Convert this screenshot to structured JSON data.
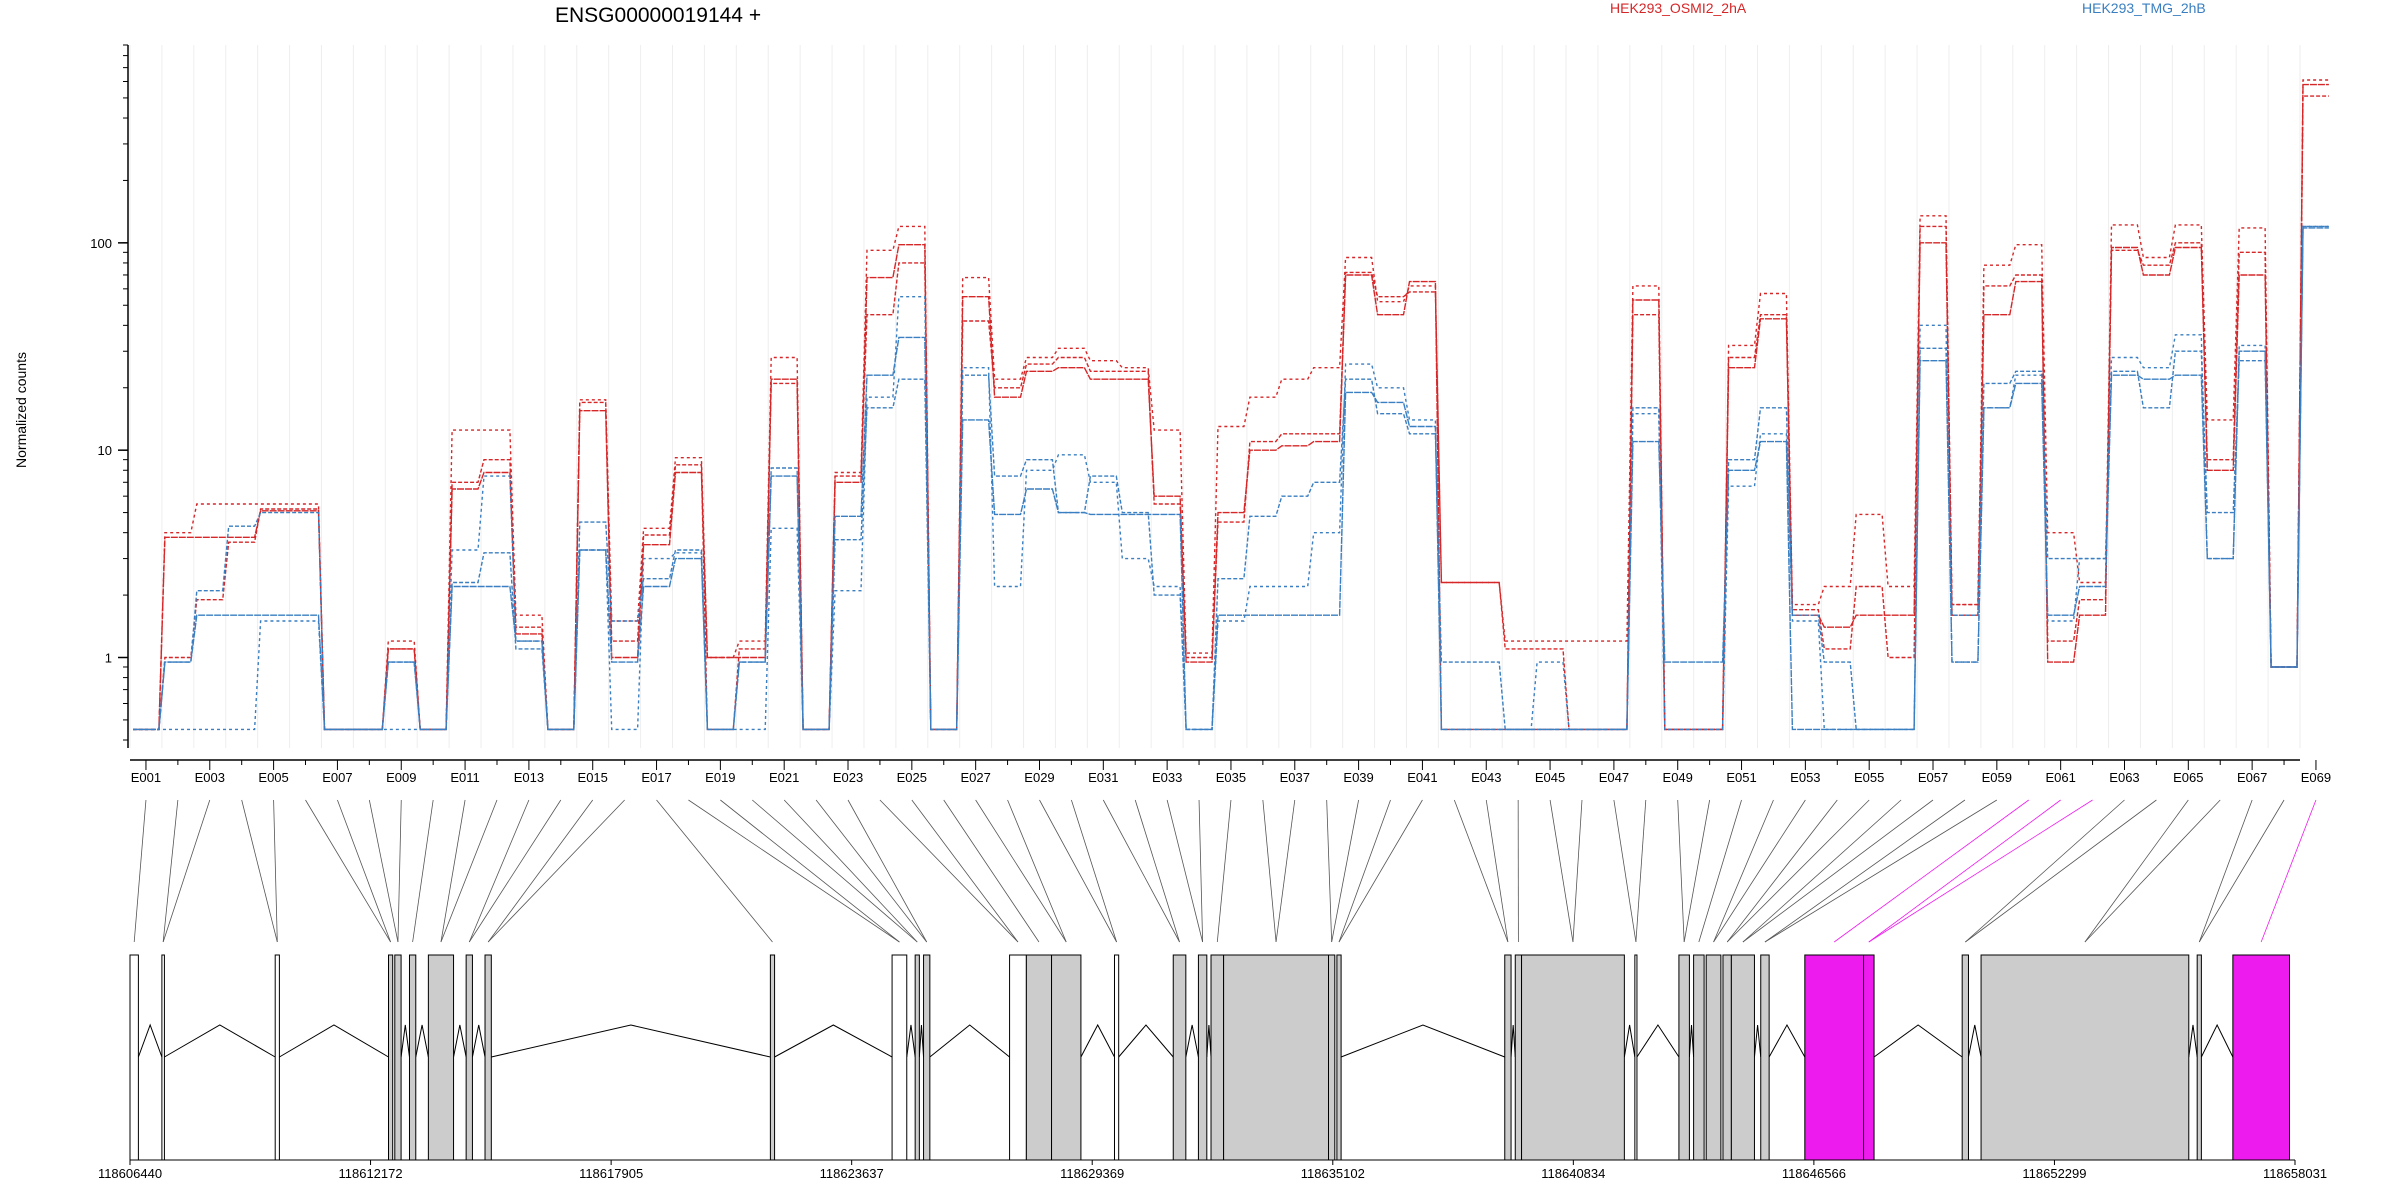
{
  "chart_data": {
    "type": "line",
    "title": "ENSG00000019144 +",
    "ylabel": "Normalized counts",
    "yscale": "log",
    "ylim": [
      0.4,
      900
    ],
    "yticks": [
      {
        "value": 1,
        "label": "1"
      },
      {
        "value": 10,
        "label": "10"
      },
      {
        "value": 100,
        "label": "100"
      }
    ],
    "legend": [
      {
        "name": "HEK293_OSMI2_2hA",
        "color": "#d62728"
      },
      {
        "name": "HEK293_TMG_2hB",
        "color": "#3a7fc1"
      }
    ],
    "exon_count": 69,
    "series": [
      {
        "name": "HEK293_OSMI2_2hA",
        "color": "#d62728",
        "values": [
          0.45,
          3.8,
          3.8,
          3.8,
          5.1,
          5.1,
          0.45,
          0.45,
          1.1,
          0.45,
          6.5,
          7.8,
          1.3,
          0.45,
          15.5,
          1.0,
          3.5,
          7.8,
          1.0,
          1.0,
          22,
          0.45,
          7.0,
          68,
          98,
          0.45,
          55,
          18,
          24,
          25,
          22,
          22,
          6.0,
          0.95,
          5.0,
          10,
          10.5,
          11,
          70,
          45,
          65,
          0.45,
          0.45,
          0.45,
          0.45,
          0.45,
          0.45,
          53,
          0.45,
          0.45,
          25,
          43,
          1.6,
          1.4,
          1.6,
          1.6,
          100,
          1.6,
          45,
          65,
          0.95,
          1.6,
          95,
          70,
          95,
          8.0,
          70,
          0.9,
          580
        ]
      },
      {
        "name": "HEK293_OSMI2_2hA",
        "color": "#d62728",
        "values": [
          0.45,
          1.0,
          1.9,
          3.6,
          5.2,
          5.2,
          0.45,
          0.45,
          1.1,
          0.45,
          7.0,
          9.0,
          1.4,
          0.45,
          17,
          1.2,
          3.9,
          8.5,
          0.45,
          1.1,
          21,
          0.45,
          7.5,
          45,
          80,
          0.45,
          42,
          20,
          26,
          28,
          24,
          24,
          5.5,
          1.0,
          4.5,
          11,
          12,
          12,
          72,
          55,
          58,
          2.3,
          2.3,
          1.1,
          1.1,
          0.45,
          0.45,
          45,
          0.45,
          0.45,
          28,
          45,
          1.7,
          1.1,
          2.2,
          1.0,
          120,
          1.8,
          62,
          70,
          1.2,
          1.9,
          92,
          78,
          100,
          9.0,
          90,
          0.9,
          510
        ]
      },
      {
        "name": "HEK293_OSMI2_2hA",
        "color": "#d62728",
        "values": [
          0.45,
          4.0,
          5.5,
          5.5,
          5.5,
          5.5,
          0.45,
          0.45,
          1.2,
          0.45,
          12.5,
          12.5,
          1.6,
          0.45,
          17.5,
          1.5,
          4.2,
          9.2,
          1.0,
          1.2,
          28,
          0.45,
          7.8,
          92,
          120,
          0.45,
          68,
          22,
          28,
          31,
          27,
          25,
          12.5,
          1.05,
          13,
          18,
          22,
          25,
          85,
          52,
          62,
          2.3,
          2.3,
          1.2,
          1.2,
          1.2,
          1.2,
          62,
          0.45,
          0.45,
          32,
          57,
          1.8,
          2.2,
          4.9,
          2.2,
          135,
          1.8,
          78,
          98,
          4.0,
          2.3,
          122,
          85,
          122,
          14,
          118,
          0.9,
          610
        ]
      },
      {
        "name": "HEK293_TMG_2hB",
        "color": "#3a7fc1",
        "values": [
          0.45,
          0.95,
          1.6,
          1.6,
          1.6,
          1.6,
          0.45,
          0.45,
          0.95,
          0.45,
          2.2,
          2.2,
          1.2,
          0.45,
          3.3,
          0.95,
          2.2,
          3.0,
          0.45,
          0.95,
          7.5,
          0.45,
          4.8,
          23,
          35,
          0.45,
          14,
          4.9,
          6.5,
          5.0,
          4.9,
          4.9,
          4.9,
          0.45,
          1.6,
          1.6,
          1.6,
          1.6,
          19,
          17,
          13,
          0.45,
          0.45,
          0.45,
          0.45,
          0.45,
          0.45,
          11,
          0.95,
          0.95,
          8.0,
          11,
          0.45,
          0.45,
          0.45,
          0.45,
          27,
          0.95,
          16,
          21,
          1.6,
          2.2,
          23,
          22,
          23,
          3.0,
          30,
          0.9,
          118
        ]
      },
      {
        "name": "HEK293_TMG_2hB",
        "color": "#3a7fc1",
        "values": [
          0.45,
          0.95,
          2.1,
          4.3,
          5.0,
          5.0,
          0.45,
          0.45,
          0.95,
          0.45,
          2.3,
          3.2,
          1.1,
          0.45,
          4.5,
          1.5,
          2.4,
          3.3,
          0.45,
          0.95,
          8.2,
          0.45,
          3.7,
          16,
          22,
          0.45,
          23,
          7.5,
          9.0,
          5.0,
          7.5,
          5.0,
          2.0,
          0.45,
          2.4,
          4.8,
          6.0,
          7.0,
          22,
          15,
          12,
          0.95,
          0.95,
          0.45,
          0.45,
          0.45,
          0.45,
          16,
          0.45,
          0.45,
          9.0,
          16,
          1.6,
          0.95,
          0.45,
          0.45,
          31,
          1.6,
          21,
          24,
          3.0,
          3.0,
          24,
          16,
          30,
          5.0,
          27,
          0.9,
          120
        ]
      },
      {
        "name": "HEK293_TMG_2hB",
        "color": "#3a7fc1",
        "values": [
          0.45,
          0.45,
          0.45,
          0.45,
          1.5,
          1.5,
          0.45,
          0.45,
          0.45,
          0.45,
          3.3,
          7.5,
          1.2,
          0.45,
          3.3,
          0.45,
          3.0,
          3.2,
          0.45,
          0.45,
          4.2,
          0.45,
          2.1,
          18,
          55,
          0.45,
          25,
          2.2,
          8.0,
          9.5,
          7.0,
          3.0,
          2.2,
          0.45,
          1.5,
          2.2,
          2.2,
          4.0,
          26,
          20,
          14,
          0.45,
          0.45,
          0.45,
          0.95,
          0.45,
          0.45,
          15,
          0.45,
          0.45,
          6.7,
          12,
          1.5,
          0.45,
          0.45,
          0.45,
          40,
          0.95,
          16,
          23,
          1.5,
          3.0,
          28,
          25,
          36,
          3.0,
          32,
          0.9,
          120
        ]
      }
    ],
    "exon_labels": [
      "E001",
      "E003",
      "E005",
      "E007",
      "E009",
      "E011",
      "E013",
      "E015",
      "E017",
      "E019",
      "E021",
      "E023",
      "E025",
      "E027",
      "E029",
      "E031",
      "E033",
      "E035",
      "E037",
      "E039",
      "E041",
      "E043",
      "E045",
      "E047",
      "E049",
      "E051",
      "E053",
      "E055",
      "E057",
      "E059",
      "E061",
      "E063",
      "E065",
      "E067",
      "E069"
    ],
    "genomic_coordinates": [
      "118606440",
      "118612172",
      "118617905",
      "118623637",
      "118629369",
      "118635102",
      "118640834",
      "118646566",
      "118652299",
      "118658031"
    ],
    "gene_model": {
      "intron_color": "#000000",
      "coding_color": "#cccccc",
      "utr_color": "#ffffff",
      "highlight_color": "#ee1bee",
      "blocks": [
        {
          "start": 118606440,
          "end": 118606640,
          "type": "utr"
        },
        {
          "start": 118607200,
          "end": 118607260,
          "type": "utr"
        },
        {
          "start": 118609900,
          "end": 118610000,
          "type": "utr"
        },
        {
          "start": 118612600,
          "end": 118612700,
          "type": "coding"
        },
        {
          "start": 118612750,
          "end": 118612900,
          "type": "coding"
        },
        {
          "start": 118613100,
          "end": 118613250,
          "type": "coding"
        },
        {
          "start": 118613550,
          "end": 118614150,
          "type": "coding"
        },
        {
          "start": 118614450,
          "end": 118614600,
          "type": "coding"
        },
        {
          "start": 118614900,
          "end": 118615050,
          "type": "coding"
        },
        {
          "start": 118621700,
          "end": 118621800,
          "type": "coding"
        },
        {
          "start": 118624600,
          "end": 118624950,
          "type": "utr"
        },
        {
          "start": 118625150,
          "end": 118625250,
          "type": "coding"
        },
        {
          "start": 118625350,
          "end": 118625500,
          "type": "coding"
        },
        {
          "start": 118627400,
          "end": 118627800,
          "type": "utr"
        },
        {
          "start": 118627800,
          "end": 118628400,
          "type": "coding"
        },
        {
          "start": 118628400,
          "end": 118629100,
          "type": "coding"
        },
        {
          "start": 118629900,
          "end": 118630000,
          "type": "utr"
        },
        {
          "start": 118631300,
          "end": 118631600,
          "type": "coding"
        },
        {
          "start": 118631900,
          "end": 118632100,
          "type": "coding"
        },
        {
          "start": 118632200,
          "end": 118632500,
          "type": "coding"
        },
        {
          "start": 118632500,
          "end": 118635000,
          "type": "coding"
        },
        {
          "start": 118635000,
          "end": 118635150,
          "type": "coding"
        },
        {
          "start": 118635200,
          "end": 118635300,
          "type": "coding"
        },
        {
          "start": 118639200,
          "end": 118639350,
          "type": "coding"
        },
        {
          "start": 118639450,
          "end": 118639600,
          "type": "coding"
        },
        {
          "start": 118639600,
          "end": 118642050,
          "type": "coding"
        },
        {
          "start": 118642300,
          "end": 118642350,
          "type": "utr"
        },
        {
          "start": 118643350,
          "end": 118643600,
          "type": "coding"
        },
        {
          "start": 118643700,
          "end": 118643950,
          "type": "coding"
        },
        {
          "start": 118644000,
          "end": 118644350,
          "type": "coding"
        },
        {
          "start": 118644400,
          "end": 118644600,
          "type": "coding"
        },
        {
          "start": 118644600,
          "end": 118645150,
          "type": "coding"
        },
        {
          "start": 118645300,
          "end": 118645500,
          "type": "coding"
        },
        {
          "start": 118646350,
          "end": 118647750,
          "type": "highlight"
        },
        {
          "start": 118647750,
          "end": 118648000,
          "type": "highlight"
        },
        {
          "start": 118650100,
          "end": 118650250,
          "type": "coding"
        },
        {
          "start": 118650550,
          "end": 118655500,
          "type": "coding"
        },
        {
          "start": 118655700,
          "end": 118655800,
          "type": "coding"
        },
        {
          "start": 118656550,
          "end": 118657900,
          "type": "highlight"
        }
      ]
    }
  }
}
